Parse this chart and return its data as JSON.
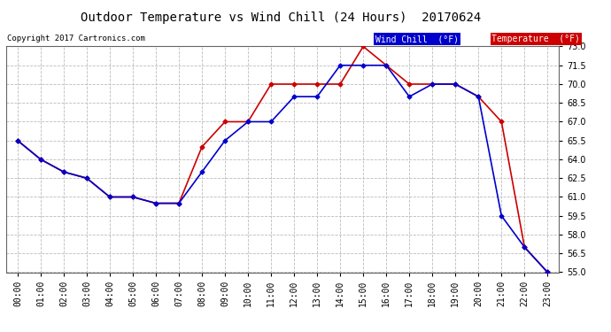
{
  "title": "Outdoor Temperature vs Wind Chill (24 Hours)  20170624",
  "copyright": "Copyright 2017 Cartronics.com",
  "hours": [
    "00:00",
    "01:00",
    "02:00",
    "03:00",
    "04:00",
    "05:00",
    "06:00",
    "07:00",
    "08:00",
    "09:00",
    "10:00",
    "11:00",
    "12:00",
    "13:00",
    "14:00",
    "15:00",
    "16:00",
    "17:00",
    "18:00",
    "19:00",
    "20:00",
    "21:00",
    "22:00",
    "23:00"
  ],
  "temperature": [
    65.5,
    64.0,
    63.0,
    62.5,
    61.0,
    61.0,
    60.5,
    60.5,
    65.0,
    67.0,
    67.0,
    70.0,
    70.0,
    70.0,
    70.0,
    73.0,
    71.5,
    70.0,
    70.0,
    70.0,
    69.0,
    67.0,
    57.0,
    55.0
  ],
  "wind_chill": [
    65.5,
    64.0,
    63.0,
    62.5,
    61.0,
    61.0,
    60.5,
    60.5,
    63.0,
    65.5,
    67.0,
    67.0,
    69.0,
    69.0,
    71.5,
    71.5,
    71.5,
    69.0,
    70.0,
    70.0,
    69.0,
    59.5,
    57.0,
    55.0
  ],
  "temp_color": "#cc0000",
  "wind_chill_color": "#0000cc",
  "ylim_min": 55.0,
  "ylim_max": 73.0,
  "ytick_step": 1.5,
  "bg_color": "#ffffff",
  "grid_color": "#bbbbbb",
  "legend_wind_chill_bg": "#0000cc",
  "legend_temp_bg": "#cc0000",
  "legend_wind_chill_text": "Wind Chill  (°F)",
  "legend_temp_text": "Temperature  (°F)",
  "marker": "D",
  "marker_size": 2.5,
  "linewidth": 1.2
}
